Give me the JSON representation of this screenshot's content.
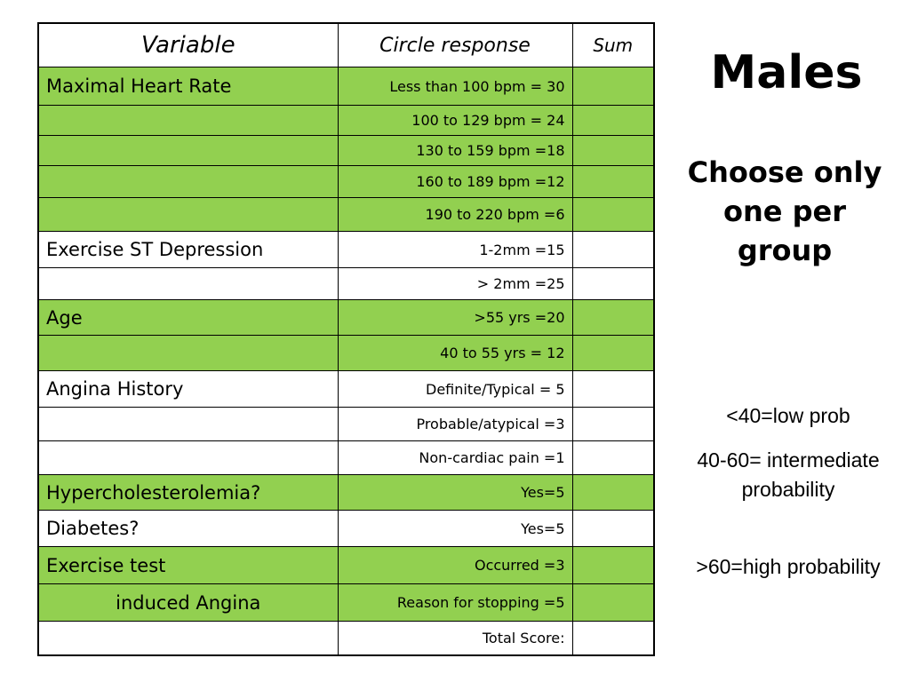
{
  "table": {
    "headers": {
      "variable": "Variable",
      "response": "Circle response",
      "sum": "Sum"
    },
    "rows": [
      {
        "variable": "Maximal Heart Rate",
        "response": "Less than 100 bpm = 30",
        "sum": ""
      },
      {
        "variable": "",
        "response": "100 to 129 bpm = 24",
        "sum": ""
      },
      {
        "variable": "",
        "response": "130 to 159 bpm =18",
        "sum": ""
      },
      {
        "variable": "",
        "response": "160 to 189 bpm =12",
        "sum": ""
      },
      {
        "variable": "",
        "response": "190 to 220 bpm =6",
        "sum": ""
      },
      {
        "variable": "Exercise ST Depression",
        "response": "1-2mm =15",
        "sum": ""
      },
      {
        "variable": "",
        "response": "> 2mm =25",
        "sum": ""
      },
      {
        "variable": "Age",
        "response": ">55 yrs =20",
        "sum": ""
      },
      {
        "variable": "",
        "response": "40 to 55 yrs = 12",
        "sum": ""
      },
      {
        "variable": "Angina History",
        "response": "Definite/Typical = 5",
        "sum": ""
      },
      {
        "variable": "",
        "response": "Probable/atypical =3",
        "sum": ""
      },
      {
        "variable": "",
        "response": "Non-cardiac pain =1",
        "sum": ""
      },
      {
        "variable": "Hypercholesterolemia?",
        "response": "Yes=5",
        "sum": ""
      },
      {
        "variable": "Diabetes?",
        "response": "Yes=5",
        "sum": ""
      },
      {
        "variable": "Exercise test",
        "response": "Occurred =3",
        "sum": ""
      },
      {
        "variable": "induced Angina",
        "response": "Reason for stopping =5",
        "sum": ""
      },
      {
        "variable": "",
        "response": "Total Score:",
        "sum": ""
      }
    ]
  },
  "side": {
    "title": "Males",
    "instruction": "Choose only one per group",
    "legend": [
      "<40=low prob",
      "40-60= intermediate probability",
      ">60=high probability"
    ]
  },
  "colors": {
    "highlight": "#92d050",
    "border": "#000000",
    "background": "#ffffff"
  }
}
